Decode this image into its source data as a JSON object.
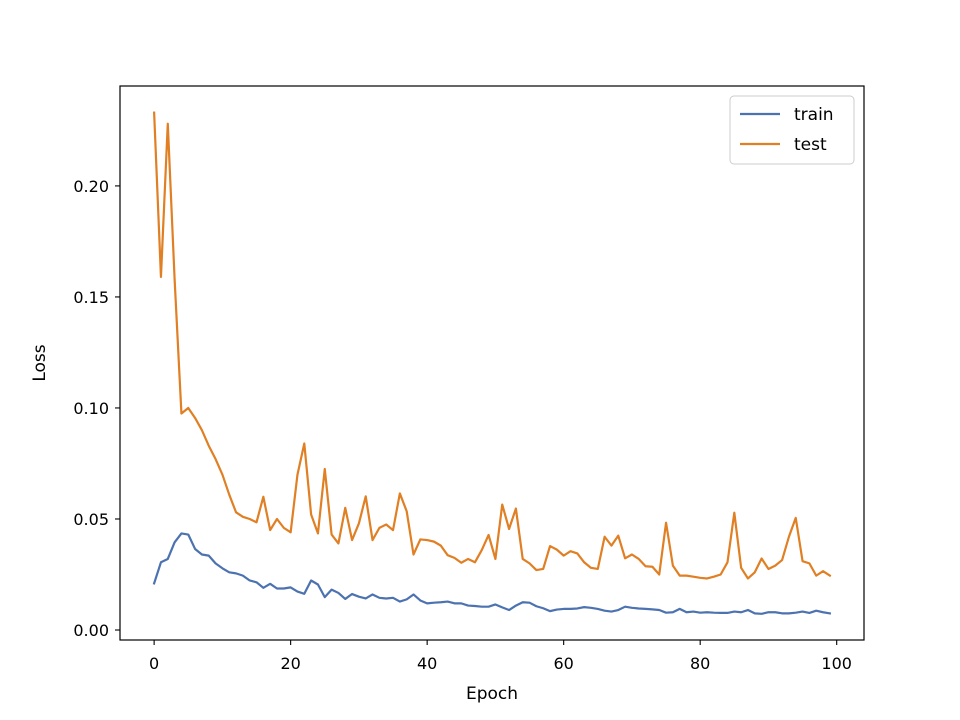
{
  "chart_data": {
    "type": "line",
    "title": "",
    "xlabel": "Epoch",
    "ylabel": "Loss",
    "xlim": [
      -5,
      104
    ],
    "ylim": [
      -0.0045,
      0.245
    ],
    "xticks": [
      0,
      20,
      40,
      60,
      80,
      100
    ],
    "yticks": [
      0.0,
      0.05,
      0.1,
      0.15,
      0.2
    ],
    "xtick_labels": [
      "0",
      "20",
      "40",
      "60",
      "80",
      "100"
    ],
    "ytick_labels": [
      "0.00",
      "0.05",
      "0.10",
      "0.15",
      "0.20"
    ],
    "grid": false,
    "legend_position": "top-right",
    "series": [
      {
        "name": "train",
        "color": "#4c72b0",
        "values": [
          0.021,
          0.0305,
          0.032,
          0.0395,
          0.0435,
          0.043,
          0.0365,
          0.034,
          0.0335,
          0.03,
          0.0278,
          0.026,
          0.0255,
          0.0245,
          0.0223,
          0.0215,
          0.019,
          0.0208,
          0.0187,
          0.0187,
          0.0192,
          0.0173,
          0.0163,
          0.0223,
          0.0205,
          0.0148,
          0.0182,
          0.0167,
          0.014,
          0.0162,
          0.015,
          0.0142,
          0.016,
          0.0145,
          0.0142,
          0.0145,
          0.0128,
          0.0138,
          0.016,
          0.0133,
          0.012,
          0.0123,
          0.0125,
          0.0128,
          0.012,
          0.012,
          0.011,
          0.0108,
          0.0105,
          0.0105,
          0.0115,
          0.0102,
          0.009,
          0.011,
          0.0125,
          0.0123,
          0.0107,
          0.0098,
          0.0085,
          0.0092,
          0.0095,
          0.0095,
          0.0097,
          0.0103,
          0.01,
          0.0095,
          0.0087,
          0.0083,
          0.009,
          0.0105,
          0.01,
          0.0097,
          0.0095,
          0.0093,
          0.009,
          0.0078,
          0.008,
          0.0095,
          0.008,
          0.0083,
          0.0078,
          0.008,
          0.0078,
          0.0077,
          0.0077,
          0.0083,
          0.008,
          0.009,
          0.0075,
          0.0073,
          0.008,
          0.008,
          0.0075,
          0.0075,
          0.0078,
          0.0083,
          0.0077,
          0.0087,
          0.008,
          0.0075
        ]
      },
      {
        "name": "test",
        "color": "#e07f23",
        "values": [
          0.233,
          0.159,
          0.228,
          0.158,
          0.0975,
          0.1,
          0.0955,
          0.09,
          0.083,
          0.077,
          0.07,
          0.061,
          0.053,
          0.051,
          0.05,
          0.0485,
          0.06,
          0.045,
          0.05,
          0.046,
          0.044,
          0.07,
          0.084,
          0.052,
          0.0435,
          0.0725,
          0.043,
          0.039,
          0.055,
          0.0405,
          0.048,
          0.0602,
          0.0405,
          0.046,
          0.0475,
          0.045,
          0.0615,
          0.0535,
          0.034,
          0.0408,
          0.0405,
          0.0398,
          0.038,
          0.0337,
          0.0325,
          0.0303,
          0.032,
          0.0305,
          0.036,
          0.0428,
          0.032,
          0.0565,
          0.0455,
          0.0547,
          0.032,
          0.03,
          0.027,
          0.0275,
          0.0378,
          0.0362,
          0.0335,
          0.0355,
          0.0345,
          0.0305,
          0.028,
          0.0275,
          0.042,
          0.038,
          0.0425,
          0.0323,
          0.034,
          0.032,
          0.0287,
          0.0285,
          0.025,
          0.0483,
          0.029,
          0.0245,
          0.0245,
          0.024,
          0.0235,
          0.0232,
          0.024,
          0.025,
          0.0305,
          0.0528,
          0.028,
          0.0232,
          0.026,
          0.0322,
          0.0275,
          0.029,
          0.0315,
          0.042,
          0.0505,
          0.031,
          0.03,
          0.0245,
          0.0265,
          0.0245
        ]
      }
    ]
  }
}
